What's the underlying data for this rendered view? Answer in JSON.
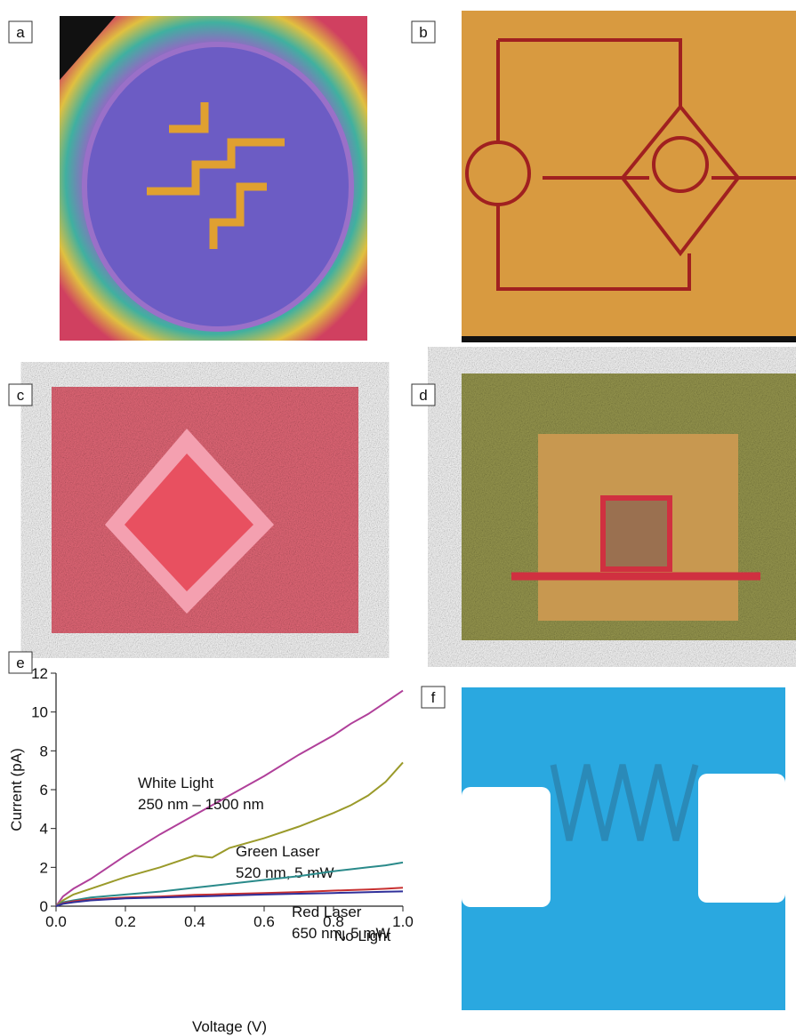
{
  "panels": [
    "a",
    "b",
    "c",
    "d",
    "e",
    "f"
  ],
  "chart_data": {
    "type": "line",
    "x_label": "Voltage (V)",
    "y_label": "Current (pA)",
    "x": [
      0,
      0.02,
      0.05,
      0.1,
      0.2,
      0.3,
      0.4,
      0.45,
      0.5,
      0.6,
      0.7,
      0.8,
      0.85,
      0.9,
      0.95,
      1.0
    ],
    "xlim": [
      0,
      1
    ],
    "ylim": [
      0,
      12
    ],
    "xticks": [
      {
        "value": 0,
        "label": "0.0"
      },
      0.2,
      0.4,
      0.6,
      0.8,
      {
        "value": 1,
        "label": "1.0"
      }
    ],
    "yticks": [
      0,
      2,
      4,
      6,
      8,
      10,
      12
    ],
    "series": [
      {
        "name": "White Light",
        "detail": "250 nm – 1500 nm",
        "color": "#b0409a",
        "values": [
          0,
          0.5,
          0.9,
          1.4,
          2.6,
          3.7,
          4.7,
          5.2,
          5.7,
          6.7,
          7.8,
          8.8,
          9.4,
          9.9,
          10.5,
          11.1
        ]
      },
      {
        "name": "Green Laser",
        "detail": "520 nm, 5 mW",
        "color": "#9a9a2a",
        "values": [
          0,
          0.3,
          0.6,
          0.9,
          1.5,
          2.0,
          2.6,
          2.5,
          3.0,
          3.5,
          4.1,
          4.8,
          5.2,
          5.7,
          6.4,
          7.4
        ]
      },
      {
        "name": "Red Laser",
        "detail": "650 nm, 5 mW",
        "color": "#2a8a8a",
        "values": [
          0,
          0.2,
          0.3,
          0.45,
          0.6,
          0.75,
          0.95,
          1.05,
          1.15,
          1.35,
          1.55,
          1.8,
          1.9,
          2.0,
          2.1,
          2.25
        ]
      },
      {
        "name": "No Light",
        "color": "#c83030",
        "values": [
          0,
          0.15,
          0.25,
          0.35,
          0.45,
          0.5,
          0.58,
          0.6,
          0.63,
          0.68,
          0.73,
          0.8,
          0.83,
          0.86,
          0.9,
          0.95
        ]
      },
      {
        "color": "#30309a",
        "values": [
          0,
          0.12,
          0.2,
          0.3,
          0.4,
          0.45,
          0.5,
          0.52,
          0.55,
          0.6,
          0.64,
          0.68,
          0.7,
          0.72,
          0.74,
          0.76
        ]
      }
    ]
  }
}
